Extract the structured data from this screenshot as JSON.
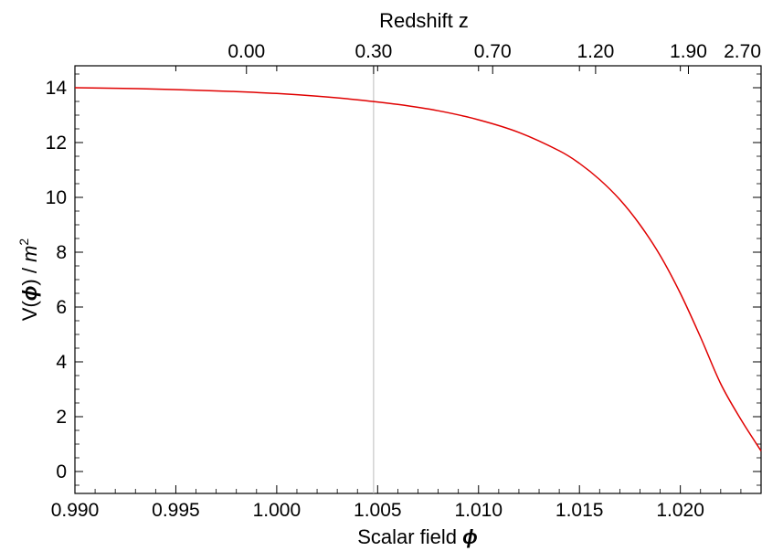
{
  "chart_data": {
    "type": "line",
    "xlabel": "Scalar field ",
    "xlabel_symbol": "ϕ",
    "ylabel": "V(",
    "ylabel_symbol": "ϕ",
    "ylabel_tail": ") / ",
    "ylabel_unit": "m",
    "ylabel_unit_exp": "2",
    "top_xlabel": "Redshift z",
    "xlim": [
      0.99,
      1.024
    ],
    "ylim": [
      -0.8,
      14.8
    ],
    "x_ticks": [
      0.99,
      0.995,
      1.0,
      1.005,
      1.01,
      1.015,
      1.02
    ],
    "x_tick_labels": [
      "0.990",
      "0.995",
      "1.000",
      "1.005",
      "1.010",
      "1.015",
      "1.020"
    ],
    "y_ticks": [
      0,
      2,
      4,
      6,
      8,
      10,
      12,
      14
    ],
    "y_tick_labels": [
      "0",
      "2",
      "4",
      "6",
      "8",
      "10",
      "12",
      "14"
    ],
    "top_ticks": [
      {
        "label": "0.00",
        "phi": 0.9985
      },
      {
        "label": "0.30",
        "phi": 1.0048
      },
      {
        "label": "0.70",
        "phi": 1.0107
      },
      {
        "label": "1.20",
        "phi": 1.0158
      },
      {
        "label": "1.90",
        "phi": 1.0204
      },
      {
        "label": "2.70",
        "phi": 1.024
      }
    ],
    "vline_phi": 1.0048,
    "grid": false,
    "series": [
      {
        "color": "#e00000",
        "x": [
          0.99,
          0.992,
          0.994,
          0.996,
          0.998,
          1.0,
          1.002,
          1.004,
          1.006,
          1.008,
          1.01,
          1.012,
          1.014,
          1.015,
          1.016,
          1.017,
          1.018,
          1.019,
          1.02,
          1.021,
          1.022,
          1.023,
          1.024
        ],
        "y": [
          14.0,
          13.98,
          13.95,
          13.91,
          13.86,
          13.79,
          13.69,
          13.56,
          13.39,
          13.16,
          12.83,
          12.37,
          11.7,
          11.24,
          10.65,
          9.92,
          9.0,
          7.88,
          6.5,
          4.9,
          3.2,
          1.9,
          0.75
        ]
      }
    ]
  }
}
